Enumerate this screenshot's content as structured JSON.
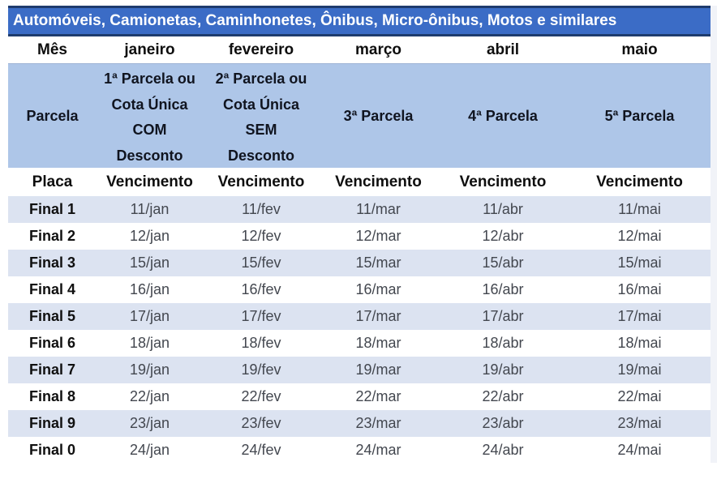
{
  "title": "Automóveis, Camionetas, Caminhonetes, Ônibus, Micro-ônibus, Motos e similares",
  "colors": {
    "title_bar_bg": "#3b6cc6",
    "title_bar_border": "#1e3c6e",
    "parcela_band_bg": "#aec6e8",
    "row_stripe_bg": "#dce3f1",
    "title_text": "#ffffff",
    "body_text": "#0e0e0e"
  },
  "months": {
    "label": "Mês",
    "values": [
      "janeiro",
      "fevereiro",
      "março",
      "abril",
      "maio"
    ]
  },
  "parcela": {
    "label": "Parcela",
    "cells": [
      {
        "lines": [
          "1ª Parcela ou",
          "Cota Única",
          "COM",
          "Desconto"
        ]
      },
      {
        "lines": [
          "2ª Parcela ou",
          "Cota Única",
          "SEM",
          "Desconto"
        ]
      },
      {
        "lines": [
          "3ª Parcela"
        ]
      },
      {
        "lines": [
          "4ª Parcela"
        ]
      },
      {
        "lines": [
          "5ª Parcela"
        ]
      }
    ]
  },
  "header": {
    "label": "Placa",
    "values": [
      "Vencimento",
      "Vencimento",
      "Vencimento",
      "Vencimento",
      "Vencimento"
    ]
  },
  "rows": [
    {
      "placa": "Final 1",
      "dates": [
        "11/jan",
        "11/fev",
        "11/mar",
        "11/abr",
        "11/mai"
      ]
    },
    {
      "placa": "Final 2",
      "dates": [
        "12/jan",
        "12/fev",
        "12/mar",
        "12/abr",
        "12/mai"
      ]
    },
    {
      "placa": "Final 3",
      "dates": [
        "15/jan",
        "15/fev",
        "15/mar",
        "15/abr",
        "15/mai"
      ]
    },
    {
      "placa": "Final 4",
      "dates": [
        "16/jan",
        "16/fev",
        "16/mar",
        "16/abr",
        "16/mai"
      ]
    },
    {
      "placa": "Final 5",
      "dates": [
        "17/jan",
        "17/fev",
        "17/mar",
        "17/abr",
        "17/mai"
      ]
    },
    {
      "placa": "Final 6",
      "dates": [
        "18/jan",
        "18/fev",
        "18/mar",
        "18/abr",
        "18/mai"
      ]
    },
    {
      "placa": "Final 7",
      "dates": [
        "19/jan",
        "19/fev",
        "19/mar",
        "19/abr",
        "19/mai"
      ]
    },
    {
      "placa": "Final 8",
      "dates": [
        "22/jan",
        "22/fev",
        "22/mar",
        "22/abr",
        "22/mai"
      ]
    },
    {
      "placa": "Final 9",
      "dates": [
        "23/jan",
        "23/fev",
        "23/mar",
        "23/abr",
        "23/mai"
      ]
    },
    {
      "placa": "Final 0",
      "dates": [
        "24/jan",
        "24/fev",
        "24/mar",
        "24/abr",
        "24/mai"
      ]
    }
  ]
}
